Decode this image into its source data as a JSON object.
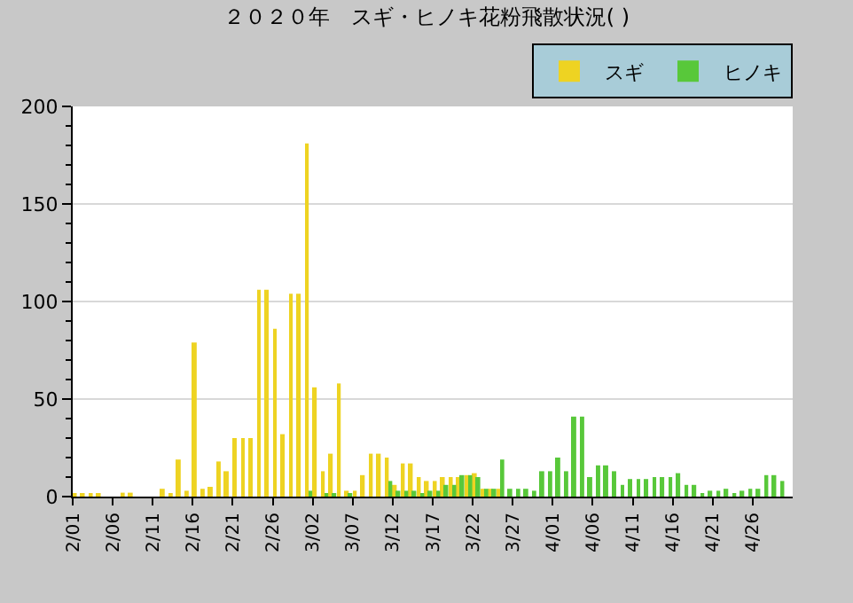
{
  "chart_data": {
    "type": "bar",
    "title": "２０２０年　スギ・ヒノキ花粉飛散状況( )",
    "categories": [
      "2/01",
      null,
      null,
      null,
      null,
      "2/06",
      null,
      null,
      null,
      null,
      "2/11",
      null,
      null,
      null,
      null,
      "2/16",
      null,
      null,
      null,
      null,
      "2/21",
      null,
      null,
      null,
      null,
      "2/26",
      null,
      null,
      null,
      null,
      "3/02",
      null,
      null,
      null,
      null,
      "3/07",
      null,
      null,
      null,
      null,
      "3/12",
      null,
      null,
      null,
      null,
      "3/17",
      null,
      null,
      null,
      null,
      "3/22",
      null,
      null,
      null,
      null,
      "3/27",
      null,
      null,
      null,
      null,
      "4/01",
      null,
      null,
      null,
      null,
      "4/06",
      null,
      null,
      null,
      null,
      "4/11",
      null,
      null,
      null,
      null,
      "4/16",
      null,
      null,
      null,
      null,
      "4/21",
      null,
      null,
      null,
      null,
      "4/26",
      null,
      null,
      null,
      null
    ],
    "series": [
      {
        "name": "スギ",
        "color": "#eed322",
        "values": [
          1,
          1,
          1,
          1,
          0,
          0,
          2,
          2,
          0,
          0,
          0,
          4,
          1,
          19,
          3,
          79,
          4,
          5,
          18,
          13,
          30,
          30,
          30,
          106,
          106,
          86,
          32,
          104,
          104,
          181,
          56,
          13,
          22,
          58,
          3,
          3,
          11,
          22,
          22,
          20,
          6,
          17,
          17,
          10,
          8,
          8,
          10,
          10,
          10,
          11,
          12,
          4,
          4,
          4,
          0,
          0,
          0,
          0,
          0,
          0,
          0,
          0,
          0,
          0,
          0,
          0,
          0,
          0,
          0,
          0,
          0,
          0,
          0,
          0,
          0,
          0,
          0,
          0,
          0,
          0,
          0,
          0,
          0,
          0,
          0,
          0,
          0,
          0,
          0,
          0
        ]
      },
      {
        "name": "ヒノキ",
        "color": "#58c83a",
        "values": [
          0,
          0,
          0,
          0,
          0,
          0,
          0,
          0,
          0,
          0,
          0,
          0,
          0,
          0,
          0,
          0,
          0,
          0,
          0,
          0,
          0,
          0,
          0,
          0,
          0,
          0,
          0,
          0,
          0,
          3,
          0,
          1,
          1,
          0,
          1,
          0,
          0,
          0,
          0,
          8,
          3,
          3,
          3,
          1,
          3,
          3,
          6,
          6,
          11,
          11,
          10,
          4,
          4,
          19,
          4,
          4,
          4,
          3,
          13,
          13,
          20,
          13,
          41,
          41,
          10,
          16,
          16,
          13,
          6,
          9,
          9,
          9,
          10,
          10,
          10,
          12,
          6,
          6,
          1,
          3,
          3,
          4,
          1,
          3,
          4,
          4,
          11,
          11,
          8,
          0
        ]
      }
    ],
    "ylim": [
      0,
      200
    ],
    "yticks": [
      0,
      50,
      100,
      150,
      200
    ],
    "grid": "y",
    "legend": "top right"
  }
}
